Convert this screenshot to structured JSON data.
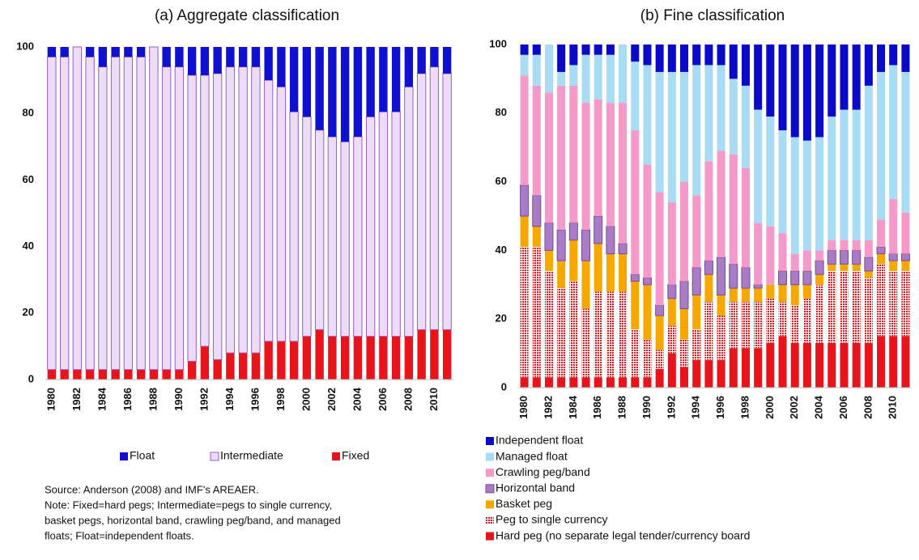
{
  "chart_data": [
    {
      "type": "stacked_bar",
      "title": "(a)  Aggregate classification",
      "categories": [
        "1980",
        null,
        "1982",
        null,
        "1984",
        null,
        "1986",
        null,
        "1988",
        null,
        "1990",
        null,
        "1992",
        null,
        "1994",
        null,
        "1996",
        null,
        "1998",
        null,
        "2000",
        null,
        "2002",
        null,
        "2004",
        null,
        "2006",
        null,
        "2008",
        null,
        "2010",
        null
      ],
      "ylim": [
        0,
        100
      ],
      "yticks": [
        0,
        20,
        40,
        60,
        80,
        100
      ],
      "series": [
        {
          "name": "Fixed",
          "color": "#e8141c",
          "values": [
            3,
            3,
            3,
            3,
            3,
            3,
            3,
            3,
            3,
            3,
            3,
            5.5,
            10,
            6,
            8,
            8,
            8,
            11.5,
            11.5,
            11.5,
            13,
            15,
            13,
            13,
            13,
            13,
            13,
            13,
            13,
            15,
            15,
            15
          ]
        },
        {
          "name": "Intermediate",
          "color": "#ecdcf8",
          "stroke": "#9a5cc8",
          "values": [
            94,
            94,
            97,
            94,
            91,
            94,
            94,
            94,
            97,
            91,
            91,
            86,
            81.5,
            86,
            86,
            86,
            86,
            78.5,
            76.5,
            69,
            66,
            60,
            60,
            58.5,
            60,
            66,
            67.5,
            67.5,
            75,
            77,
            79,
            77
          ]
        },
        {
          "name": "Float",
          "color": "#1010d0",
          "values": [
            3,
            3,
            0,
            3,
            6,
            3,
            3,
            3,
            0,
            6,
            6,
            8.5,
            8.5,
            8,
            6,
            6,
            6,
            10,
            12,
            19.5,
            21,
            25,
            27,
            28.5,
            27,
            21,
            19.5,
            19.5,
            12,
            8,
            6,
            8
          ]
        }
      ]
    },
    {
      "type": "stacked_bar",
      "title": "(b)  Fine classification",
      "categories": [
        "1980",
        null,
        "1982",
        null,
        "1984",
        null,
        "1986",
        null,
        "1988",
        null,
        "1990",
        null,
        "1992",
        null,
        "1994",
        null,
        "1996",
        null,
        "1998",
        null,
        "2000",
        null,
        "2002",
        null,
        "2004",
        null,
        "2006",
        null,
        "2008",
        null,
        "2010",
        null
      ],
      "ylim": [
        0,
        100
      ],
      "yticks": [
        0,
        20,
        40,
        60,
        80,
        100
      ],
      "series": [
        {
          "name": "Hard peg (no separate legal tender/currency board",
          "color": "#e8141c",
          "values": [
            3,
            3,
            3,
            3,
            3,
            3,
            3,
            3,
            3,
            3,
            3,
            5.5,
            10,
            6,
            8,
            8,
            8,
            11.5,
            11.5,
            11.5,
            13,
            15,
            13,
            13,
            13,
            13,
            13,
            13,
            13,
            15,
            15,
            15
          ]
        },
        {
          "name": "Peg to single currency",
          "color": "#e8141c",
          "pattern": "dots",
          "values": [
            38,
            38,
            31,
            26,
            28,
            20,
            25,
            25,
            25,
            14,
            11,
            5.5,
            8,
            8,
            9,
            17,
            13,
            13.5,
            13.5,
            13.5,
            13,
            10,
            11,
            13,
            17,
            21,
            21,
            21,
            19,
            21,
            19,
            19
          ]
        },
        {
          "name": "Basket peg",
          "color": "#f7a800",
          "values": [
            9,
            6,
            6,
            8,
            12,
            14,
            14,
            11,
            11,
            14,
            16,
            10,
            8,
            9,
            10,
            8,
            6,
            4,
            4,
            4,
            4,
            5,
            6,
            4,
            3,
            2,
            2,
            2,
            2,
            3,
            3,
            3
          ]
        },
        {
          "name": "Horizontal band",
          "color": "#a77cc4",
          "stroke": "#7a4a9a",
          "values": [
            9,
            9,
            8,
            9,
            5,
            9,
            8,
            8,
            3,
            2,
            2,
            3,
            4,
            8,
            8,
            4,
            11,
            7,
            6,
            1,
            0,
            4,
            4,
            4,
            4,
            4,
            4,
            4,
            4,
            2,
            2,
            2
          ]
        },
        {
          "name": "Crawling peg/band",
          "color": "#f59ac8",
          "values": [
            32,
            32,
            38,
            42,
            40,
            37,
            34,
            36,
            41,
            42,
            33,
            33,
            24,
            29,
            21,
            29,
            31,
            32,
            29,
            18,
            17,
            11,
            5,
            6,
            3,
            3,
            3,
            3,
            5,
            8,
            16,
            12
          ]
        },
        {
          "name": "Managed float",
          "color": "#a8dcf4",
          "values": [
            6,
            9,
            14,
            4,
            6,
            14,
            13,
            14,
            17,
            20,
            29,
            35,
            38,
            32,
            38,
            28,
            25,
            22,
            24,
            33,
            32,
            30,
            34,
            32,
            33,
            36,
            38,
            38,
            45,
            43,
            39,
            41
          ]
        },
        {
          "name": "Independent float",
          "color": "#0a0ac8",
          "values": [
            3,
            3,
            0,
            8,
            6,
            3,
            3,
            3,
            0,
            5,
            6,
            8,
            8,
            8,
            6,
            6,
            6,
            10,
            12,
            19,
            21,
            25,
            27,
            28,
            27,
            21,
            19,
            19,
            12,
            8,
            6,
            8
          ]
        }
      ]
    }
  ],
  "notes": [
    "Source: Anderson (2008) and IMF's AREAER.",
    "Note: Fixed=hard pegs; Intermediate=pegs to single currency,",
    "basket pegs, horizontal band, crawling peg/band, and managed",
    "floats; Float=independent floats."
  ]
}
